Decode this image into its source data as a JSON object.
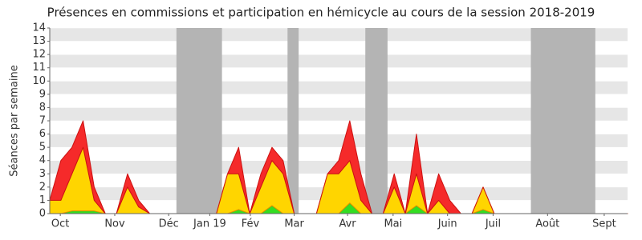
{
  "chart_data": {
    "type": "stacked_area",
    "title": "Présences en commissions et participation en hémicycle au cours de la session 2018-2019",
    "y_label": "Séances par semaine",
    "x": [
      0,
      1,
      2,
      3,
      4,
      5,
      6,
      7,
      8,
      9,
      10,
      11,
      12,
      13,
      14,
      15,
      16,
      17,
      18,
      19,
      20,
      21,
      22,
      23,
      24,
      25,
      26,
      27,
      28,
      29,
      30,
      31,
      32,
      33,
      34,
      35,
      36,
      37,
      38,
      39,
      40,
      41,
      42,
      43,
      44,
      45,
      46,
      47,
      48,
      49,
      50,
      51,
      52
    ],
    "series": [
      {
        "color": "#33dd22",
        "stroke": "#22aa22",
        "values": [
          0,
          0,
          0.2,
          0.2,
          0.2,
          0,
          0,
          0,
          0,
          0,
          0,
          0,
          0,
          0,
          0,
          0,
          0,
          0.3,
          0,
          0,
          0.6,
          0,
          0,
          0,
          0,
          0,
          0,
          0.8,
          0,
          0,
          0,
          0,
          0,
          0.6,
          0,
          0,
          0,
          0,
          0,
          0.3,
          0,
          0,
          0,
          0,
          0,
          0,
          0,
          0,
          0,
          0,
          0,
          0,
          0
        ]
      },
      {
        "color": "#ffd500",
        "stroke": "#e09000",
        "values": [
          1,
          1,
          2.8,
          4.8,
          0.8,
          0,
          0,
          2,
          0.5,
          0,
          0,
          0,
          0,
          0,
          0,
          0,
          3,
          2.7,
          0,
          2,
          3.4,
          3,
          0,
          0,
          0,
          3,
          3,
          3.2,
          1,
          0,
          0,
          2,
          0,
          2.4,
          0,
          1,
          0,
          0,
          0,
          1.7,
          0,
          0,
          0,
          0,
          0,
          0,
          0,
          0,
          0,
          0,
          0,
          0,
          0
        ]
      },
      {
        "color": "#f52a2a",
        "stroke": "#cc1111",
        "values": [
          0,
          3,
          2,
          2,
          1,
          0,
          0,
          1,
          0.5,
          0,
          0,
          0,
          0,
          0,
          0,
          0,
          0,
          2,
          0,
          1,
          1,
          1,
          0,
          0,
          0,
          0,
          1,
          3,
          2,
          0,
          0,
          1,
          0,
          3,
          0,
          2,
          1,
          0,
          0,
          0,
          0,
          0,
          0,
          0,
          0,
          0,
          0,
          0,
          0,
          0,
          0,
          0,
          0
        ]
      }
    ],
    "shaded": [
      [
        11.4,
        15.5
      ],
      [
        21.4,
        22.4
      ],
      [
        28.4,
        30.4
      ],
      [
        43.3,
        49.1
      ]
    ],
    "shade_color": "#b4b4b4",
    "xlim": [
      0,
      52
    ],
    "xticks": [
      {
        "value": 0.95,
        "label": "Oct"
      },
      {
        "value": 5.85,
        "label": "Nov"
      },
      {
        "value": 10.7,
        "label": "Déc"
      },
      {
        "value": 14.4,
        "label": "Jan 19"
      },
      {
        "value": 18.05,
        "label": "Fév"
      },
      {
        "value": 22,
        "label": "Mar"
      },
      {
        "value": 26.8,
        "label": "Avr"
      },
      {
        "value": 30.9,
        "label": "Mai"
      },
      {
        "value": 35.8,
        "label": "Juin"
      },
      {
        "value": 39.9,
        "label": "Juil"
      },
      {
        "value": 44.8,
        "label": "Août"
      },
      {
        "value": 49.9,
        "label": "Sept"
      }
    ],
    "ylim": [
      0,
      14
    ],
    "yticks": [
      0,
      1,
      2,
      3,
      4,
      5,
      6,
      7,
      8,
      9,
      10,
      11,
      12,
      13,
      14
    ],
    "grid": true
  }
}
